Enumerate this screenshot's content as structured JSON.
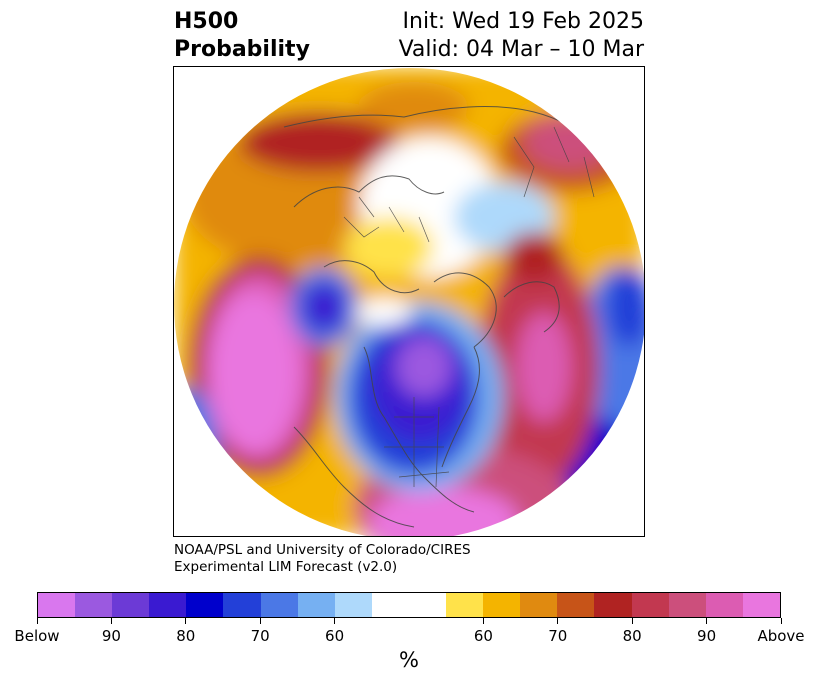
{
  "title": {
    "left_line1": "H500",
    "left_line2": "Probability",
    "right_line1": "Init: Wed 19 Feb 2025",
    "right_line2": "Valid: 04 Mar – 10 Mar"
  },
  "credit": {
    "line1": "NOAA/PSL and University of Colorado/CIRES",
    "line2": "Experimental LIM Forecast (v2.0)"
  },
  "colorbar": {
    "unit": "%",
    "colors": [
      "#d977ee",
      "#9b59e0",
      "#6c3ad6",
      "#3a1ad1",
      "#0000cc",
      "#2340d8",
      "#4b78e6",
      "#76b0f2",
      "#aed9fb",
      "#ffffff",
      "#ffe24a",
      "#f4b400",
      "#e08a10",
      "#c75418",
      "#b02322",
      "#c23850",
      "#cc4f7c",
      "#dc5cb2",
      "#e976df"
    ],
    "tick_labels": [
      "Below",
      "90",
      "80",
      "70",
      "60",
      "60",
      "70",
      "80",
      "90",
      "Above"
    ]
  },
  "map": {
    "projection": "north-polar-stereographic",
    "features": [
      "coastlines",
      "country-borders",
      "state-borders"
    ],
    "anomaly_centers": [
      {
        "name": "eastern-pacific-above",
        "category": "Above"
      },
      {
        "name": "north-america-below",
        "category": "Below"
      },
      {
        "name": "north-pacific-below",
        "category": "Below"
      },
      {
        "name": "north-atlantic-above",
        "category": "Above"
      },
      {
        "name": "europe-above",
        "category": "Above"
      },
      {
        "name": "siberia-above",
        "category": "Above"
      },
      {
        "name": "arctic-neutral",
        "category": "neutral"
      }
    ]
  }
}
